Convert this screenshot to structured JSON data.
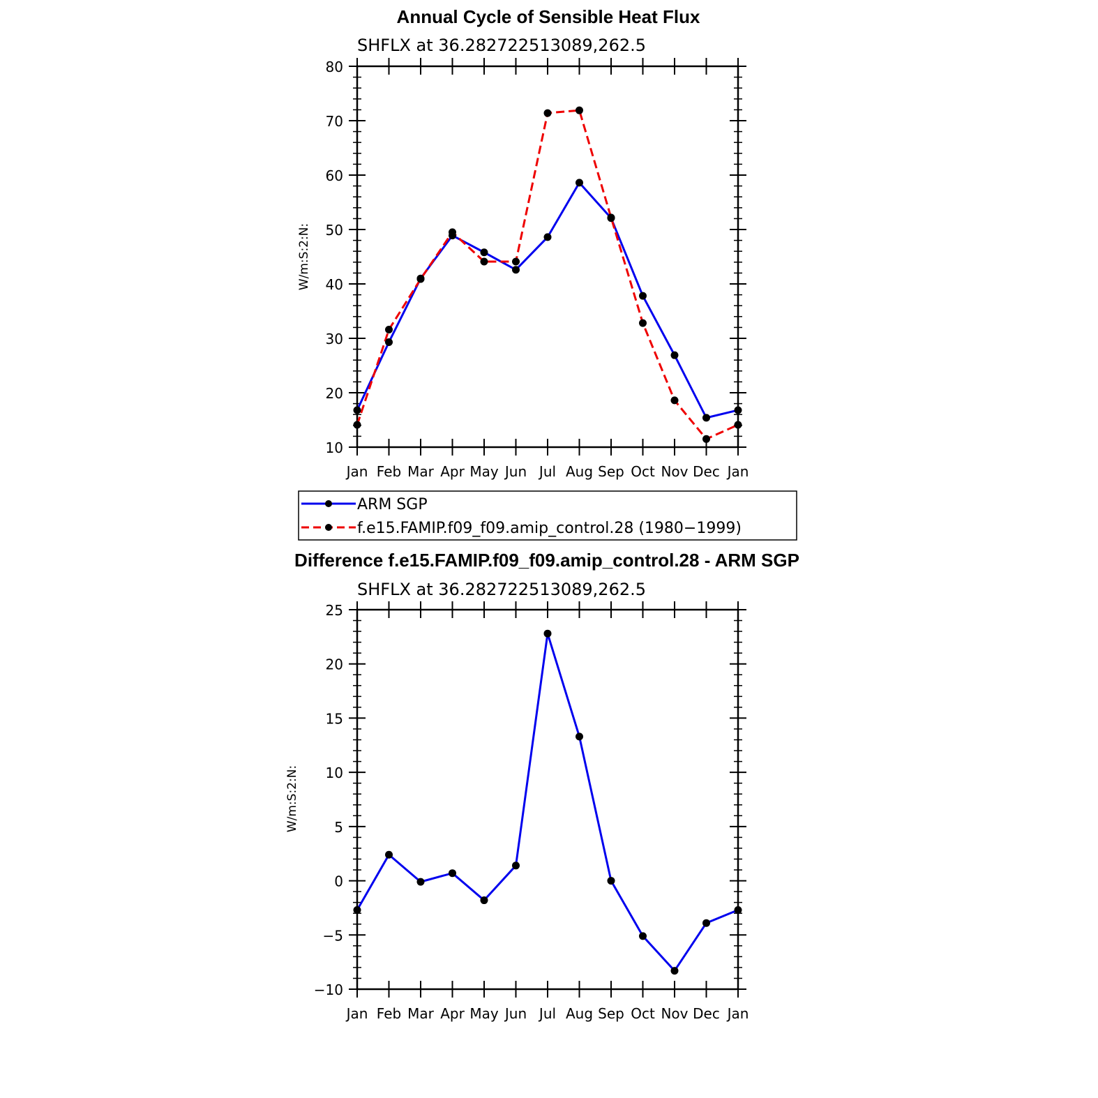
{
  "chart_data": [
    {
      "type": "line",
      "title": "Annual Cycle of Sensible Heat Flux",
      "subtitle": "SHFLX  at  36.282722513089,262.5",
      "ylabel": "W/m:S:2:N:",
      "xlabel": "",
      "categories": [
        "Jan",
        "Feb",
        "Mar",
        "Apr",
        "May",
        "Jun",
        "Jul",
        "Aug",
        "Sep",
        "Oct",
        "Nov",
        "Dec",
        "Jan"
      ],
      "ylim": [
        10,
        80
      ],
      "yticks": [
        "10",
        "20",
        "30",
        "40",
        "50",
        "60",
        "70",
        "80"
      ],
      "series": [
        {
          "name": "ARM SGP",
          "color": "#0000ee",
          "style": "solid",
          "values": [
            16.8,
            29.3,
            41.0,
            48.9,
            45.8,
            42.6,
            48.6,
            58.6,
            52.1,
            37.8,
            26.9,
            15.4,
            16.8
          ]
        },
        {
          "name": "f.e15.FAMIP.f09_f09.amip_control.28 (1980−1999)",
          "color": "#ee0000",
          "style": "dashed",
          "values": [
            14.1,
            31.6,
            40.9,
            49.5,
            44.1,
            44.1,
            71.4,
            71.9,
            52.2,
            32.8,
            18.6,
            11.5,
            14.1
          ]
        }
      ],
      "legend": "below"
    },
    {
      "type": "line",
      "title": "Difference f.e15.FAMIP.f09_f09.amip_control.28 - ARM SGP",
      "subtitle": "SHFLX  at  36.282722513089,262.5",
      "ylabel": "W/m:S:2:N:",
      "xlabel": "",
      "categories": [
        "Jan",
        "Feb",
        "Mar",
        "Apr",
        "May",
        "Jun",
        "Jul",
        "Aug",
        "Sep",
        "Oct",
        "Nov",
        "Dec",
        "Jan"
      ],
      "ylim": [
        -10,
        25
      ],
      "yticks": [
        "−10",
        "−5",
        "0",
        "5",
        "10",
        "15",
        "20",
        "25"
      ],
      "series": [
        {
          "color": "#0000ee",
          "style": "solid",
          "values": [
            -2.7,
            2.4,
            -0.1,
            0.7,
            -1.8,
            1.4,
            22.8,
            13.3,
            0.0,
            -5.1,
            -8.3,
            -3.9,
            -2.7
          ]
        }
      ]
    }
  ]
}
